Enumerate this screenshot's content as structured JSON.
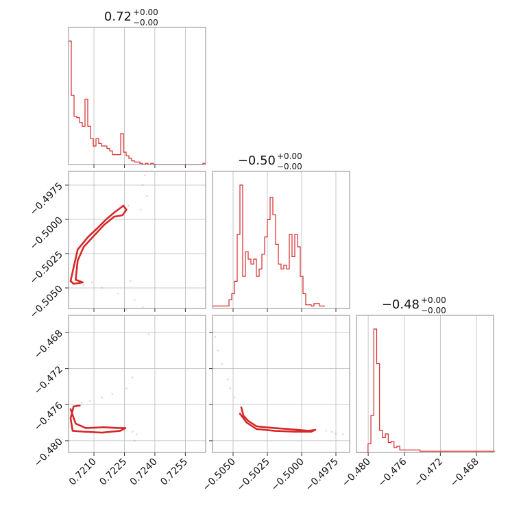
{
  "chart_data": {
    "type": "corner",
    "color": "#d62728",
    "parameters": [
      {
        "title": {
          "value": "0.72",
          "upper": "+0.00",
          "lower": "−0.00"
        },
        "range": [
          0.71975,
          0.7265
        ],
        "ticks": [
          0.721,
          0.7225,
          0.724,
          0.7255
        ],
        "tick_labels": [
          "0.7210",
          "0.7225",
          "0.7240",
          "0.7255"
        ],
        "hist": {
          "start": 0.71975,
          "bin_width": 0.000135,
          "counts": [
            1.0,
            0.56,
            0.39,
            0.38,
            0.34,
            0.31,
            0.53,
            0.31,
            0.21,
            0.15,
            0.21,
            0.17,
            0.15,
            0.15,
            0.13,
            0.11,
            0.08,
            0.08,
            0.08,
            0.25,
            0.1,
            0.07,
            0.05,
            0.03,
            0.02,
            0.02,
            0.01,
            0,
            0.01,
            0,
            0.01,
            0,
            0,
            0,
            0,
            0,
            0,
            0,
            0,
            0,
            0,
            0,
            0,
            0,
            0,
            0,
            0,
            0,
            0,
            0.01
          ]
        }
      },
      {
        "title": {
          "value": "−0.50",
          "upper": "+0.00",
          "lower": "−0.00"
        },
        "range": [
          -0.5065,
          -0.4965
        ],
        "ticks": [
          -0.505,
          -0.5025,
          -0.5,
          -0.4975
        ],
        "tick_labels": [
          "−0.5050",
          "−0.5025",
          "−0.5000",
          "−0.4975"
        ],
        "hist": {
          "start": -0.5065,
          "bin_width": 0.0002,
          "counts": [
            0.02,
            0.02,
            0.02,
            0.02,
            0.02,
            0.02,
            0.07,
            0.12,
            0.22,
            0.6,
            1.0,
            0.26,
            0.46,
            0.4,
            0.36,
            0.4,
            0.26,
            0.32,
            0.44,
            0.58,
            0.72,
            0.9,
            0.76,
            0.52,
            0.36,
            0.32,
            0.35,
            0.32,
            0.6,
            0.42,
            0.6,
            0.5,
            0.26,
            0.12,
            0.03,
            0.03,
            0.02,
            0.04,
            0.04,
            0.02,
            0.02
          ]
        }
      },
      {
        "title": {
          "value": "−0.48",
          "upper": "+0.00",
          "lower": "−0.00"
        },
        "range": [
          -0.4813,
          -0.4661
        ],
        "ticks": [
          -0.48,
          -0.476,
          -0.472,
          -0.468
        ],
        "tick_labels": [
          "−0.480",
          "−0.476",
          "−0.472",
          "−0.468"
        ],
        "hist": {
          "start": -0.4813,
          "bin_width": 0.00032,
          "counts": [
            0,
            0,
            0,
            0,
            0.07,
            0.3,
            1.0,
            0.72,
            0.18,
            0.12,
            0.15,
            0.08,
            0.09,
            0.04,
            0.05,
            0.02,
            0.02,
            0.02,
            0.02,
            0.02,
            0.02,
            0.02,
            0.01,
            0.01,
            0.01,
            0.01,
            0.01,
            0.01,
            0.01,
            0.01,
            0.01,
            0.01,
            0.01,
            0.01,
            0.01,
            0.01,
            0.01,
            0.01,
            0.01,
            0.01,
            0.01,
            0.01,
            0.01,
            0.01,
            0.01,
            0.01,
            0.01,
            0.01
          ]
        }
      }
    ],
    "panels_2d": [
      {
        "x": 0,
        "y": 1,
        "contour_path": [
          [
            0.71985,
            -0.5045
          ],
          [
            0.72,
            -0.5035
          ],
          [
            0.7202,
            -0.5022
          ],
          [
            0.7207,
            -0.5013
          ],
          [
            0.7212,
            -0.5006
          ],
          [
            0.7216,
            -0.5
          ],
          [
            0.722,
            -0.4995
          ],
          [
            0.72245,
            -0.499
          ],
          [
            0.7226,
            -0.4993
          ],
          [
            0.7224,
            -0.4997
          ],
          [
            0.722,
            -0.4998
          ],
          [
            0.7215,
            -0.5004
          ],
          [
            0.721,
            -0.5012
          ],
          [
            0.7205,
            -0.502
          ],
          [
            0.7202,
            -0.503
          ],
          [
            0.7201,
            -0.5044
          ],
          [
            0.72045,
            -0.5046
          ],
          [
            0.72,
            -0.5047
          ],
          [
            0.71985,
            -0.5045
          ]
        ],
        "points": [
          [
            0.7235,
            -0.4968
          ],
          [
            0.7234,
            -0.4975
          ],
          [
            0.7236,
            -0.4983
          ],
          [
            0.7233,
            -0.4993
          ],
          [
            0.7227,
            -0.499
          ],
          [
            0.7228,
            -0.5045
          ],
          [
            0.7222,
            -0.5054
          ],
          [
            0.7214,
            -0.505
          ],
          [
            0.723,
            -0.5059
          ],
          [
            0.7234,
            -0.5064
          ],
          [
            0.7209,
            -0.5046
          ],
          [
            0.7205,
            -0.5048
          ],
          [
            0.7226,
            -0.5066
          ]
        ]
      },
      {
        "x": 0,
        "y": 2,
        "contour_path": [
          [
            0.71985,
            -0.4765
          ],
          [
            0.7201,
            -0.4781
          ],
          [
            0.7206,
            -0.4786
          ],
          [
            0.7215,
            -0.4785
          ],
          [
            0.7222,
            -0.4786
          ],
          [
            0.72255,
            -0.4786
          ],
          [
            0.7223,
            -0.4789
          ],
          [
            0.7214,
            -0.4791
          ],
          [
            0.7205,
            -0.479
          ],
          [
            0.71995,
            -0.4789
          ],
          [
            0.71985,
            -0.4775
          ],
          [
            0.72,
            -0.4762
          ],
          [
            0.7203,
            -0.4761
          ]
        ],
        "points": [
          [
            0.7237,
            -0.4682
          ],
          [
            0.7229,
            -0.473
          ],
          [
            0.7226,
            -0.4742
          ],
          [
            0.7219,
            -0.4748
          ],
          [
            0.7214,
            -0.4752
          ],
          [
            0.7208,
            -0.4756
          ],
          [
            0.7204,
            -0.4758
          ],
          [
            0.7229,
            -0.479
          ],
          [
            0.723,
            -0.48
          ],
          [
            0.7231,
            -0.4793
          ]
        ]
      },
      {
        "x": 1,
        "y": 2,
        "contour_path": [
          [
            -0.5044,
            -0.4763
          ],
          [
            -0.50425,
            -0.4772
          ],
          [
            -0.5039,
            -0.4778
          ],
          [
            -0.5033,
            -0.4784
          ],
          [
            -0.502,
            -0.4786
          ],
          [
            -0.501,
            -0.4787
          ],
          [
            -0.4995,
            -0.4789
          ],
          [
            -0.499,
            -0.4788
          ],
          [
            -0.4993,
            -0.479
          ],
          [
            -0.5005,
            -0.479
          ],
          [
            -0.502,
            -0.4789
          ],
          [
            -0.5033,
            -0.4787
          ],
          [
            -0.504,
            -0.478
          ],
          [
            -0.5045,
            -0.477
          ]
        ],
        "points": [
          [
            -0.5063,
            -0.4685
          ],
          [
            -0.5061,
            -0.47
          ],
          [
            -0.5058,
            -0.4715
          ],
          [
            -0.5054,
            -0.4732
          ],
          [
            -0.5052,
            -0.4742
          ],
          [
            -0.5049,
            -0.4752
          ],
          [
            -0.4982,
            -0.4789
          ],
          [
            -0.4978,
            -0.479
          ],
          [
            -0.4975,
            -0.4792
          ],
          [
            -0.497,
            -0.4793
          ]
        ]
      }
    ]
  }
}
